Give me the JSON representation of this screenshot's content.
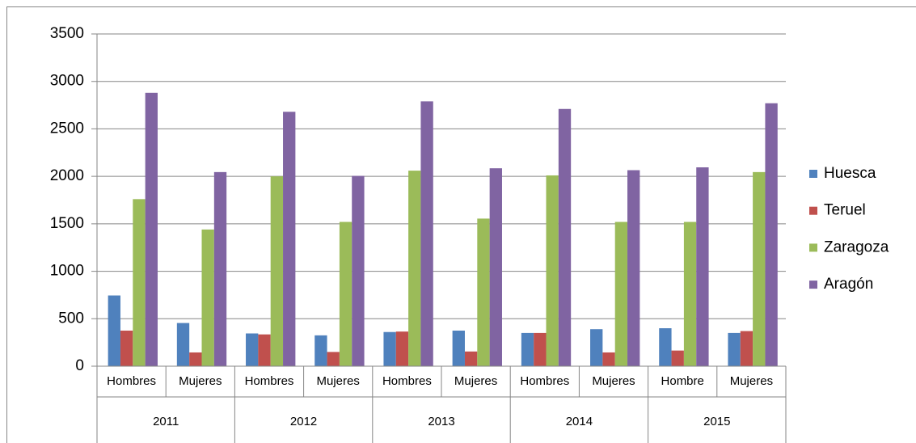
{
  "chart_data": {
    "type": "bar",
    "groups": [
      {
        "name": "2011",
        "categories": [
          "Hombres",
          "Mujeres"
        ]
      },
      {
        "name": "2012",
        "categories": [
          "Hombres",
          "Mujeres"
        ]
      },
      {
        "name": "2013",
        "categories": [
          "Hombres",
          "Mujeres"
        ]
      },
      {
        "name": "2014",
        "categories": [
          "Hombres",
          "Mujeres"
        ]
      },
      {
        "name": "2015",
        "categories": [
          "Hombre",
          "Mujeres"
        ]
      }
    ],
    "series": [
      {
        "name": "Huesca",
        "color": "#4f81bd",
        "values": [
          745,
          455,
          345,
          325,
          360,
          375,
          350,
          390,
          400,
          350
        ]
      },
      {
        "name": "Teruel",
        "color": "#c0504d",
        "values": [
          375,
          145,
          335,
          150,
          365,
          155,
          350,
          145,
          165,
          370
        ]
      },
      {
        "name": "Zaragoza",
        "color": "#9bbb59",
        "values": [
          1760,
          1440,
          2000,
          1520,
          2060,
          1555,
          2010,
          1520,
          1520,
          2045
        ]
      },
      {
        "name": "Aragón",
        "color": "#8064a2",
        "values": [
          2880,
          2045,
          2680,
          2005,
          2790,
          2085,
          2710,
          2065,
          2095,
          2770
        ]
      }
    ],
    "ylim": [
      0,
      3500
    ],
    "yticks": [
      0,
      500,
      1000,
      1500,
      2000,
      2500,
      3000,
      3500
    ],
    "grid": true,
    "legend": "right"
  }
}
